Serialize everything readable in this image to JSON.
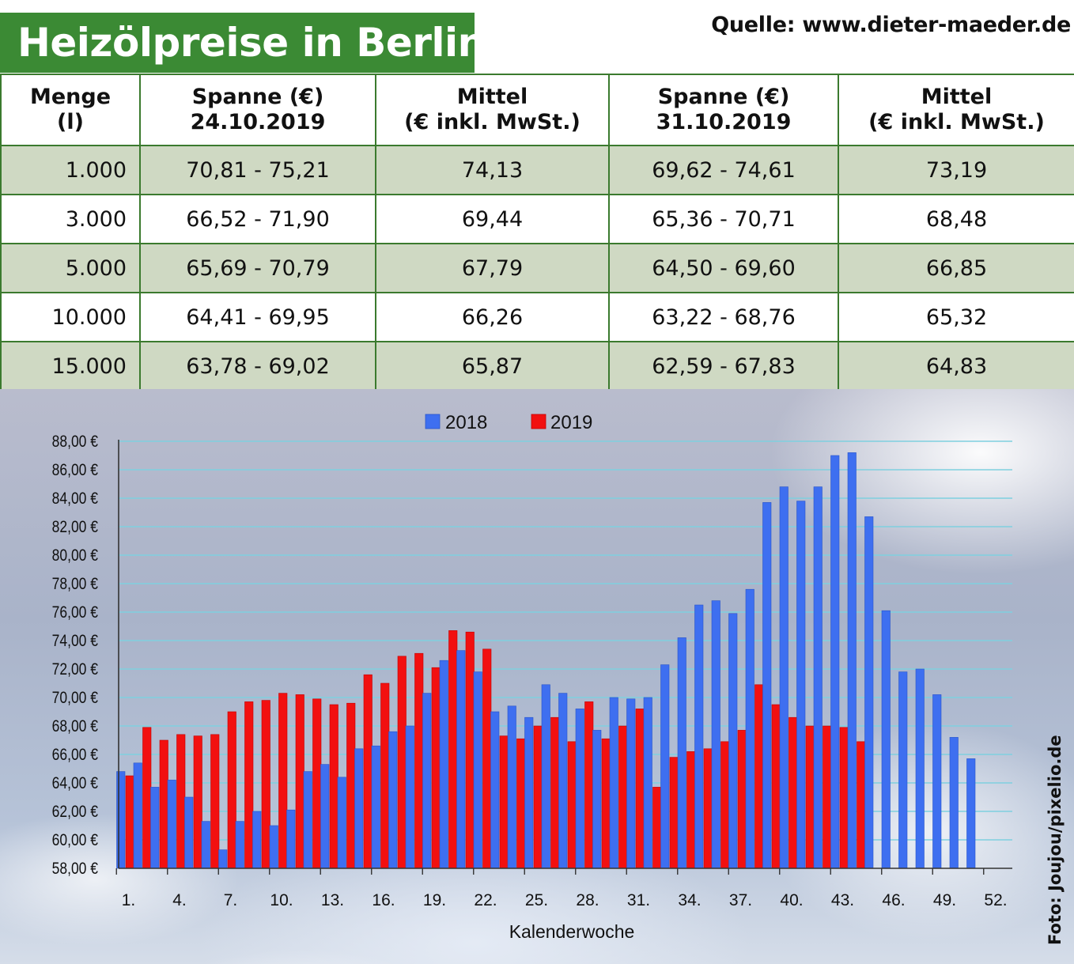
{
  "header": {
    "title": "Heizölpreise in Berlin",
    "source": "Quelle: www.dieter-maeder.de"
  },
  "table": {
    "headers": [
      {
        "line1": "Menge",
        "line2": "(l)"
      },
      {
        "line1": "Spanne (€)",
        "line2": "24.10.2019"
      },
      {
        "line1": "Mittel",
        "line2": "(€ inkl. MwSt.)"
      },
      {
        "line1": "Spanne (€)",
        "line2": "31.10.2019"
      },
      {
        "line1": "Mittel",
        "line2": "(€ inkl. MwSt.)"
      }
    ],
    "rows": [
      [
        "1.000",
        "70,81 - 75,21",
        "74,13",
        "69,62 - 74,61",
        "73,19"
      ],
      [
        "3.000",
        "66,52 - 71,90",
        "69,44",
        "65,36 - 70,71",
        "68,48"
      ],
      [
        "5.000",
        "65,69 - 70,79",
        "67,79",
        "64,50 - 69,60",
        "66,85"
      ],
      [
        "10.000",
        "64,41 - 69,95",
        "66,26",
        "63,22 - 68,76",
        "65,32"
      ],
      [
        "15.000",
        "63,78 - 69,02",
        "65,87",
        "62,59 - 67,83",
        "64,83"
      ]
    ]
  },
  "credit": "Foto: Joujou/pixelio.de",
  "chart_data": {
    "type": "bar",
    "title": "",
    "xlabel": "Kalenderwoche",
    "ylabel": "",
    "ylim": [
      58,
      88
    ],
    "yticks": [
      58,
      60,
      62,
      64,
      66,
      68,
      70,
      72,
      74,
      76,
      78,
      80,
      82,
      84,
      86,
      88
    ],
    "ytick_labels": [
      "58,00 €",
      "60,00 €",
      "62,00 €",
      "64,00 €",
      "66,00 €",
      "68,00 €",
      "70,00 €",
      "72,00 €",
      "74,00 €",
      "76,00 €",
      "78,00 €",
      "80,00 €",
      "82,00 €",
      "84,00 €",
      "86,00 €",
      "88,00 €"
    ],
    "x": [
      1,
      2,
      3,
      4,
      5,
      6,
      7,
      8,
      9,
      10,
      11,
      12,
      13,
      14,
      15,
      16,
      17,
      18,
      19,
      20,
      21,
      22,
      23,
      24,
      25,
      26,
      27,
      28,
      29,
      30,
      31,
      32,
      33,
      34,
      35,
      36,
      37,
      38,
      39,
      40,
      41,
      42,
      43,
      44,
      45,
      46,
      47,
      48,
      49,
      50,
      51,
      52
    ],
    "xtick_labels": [
      {
        "week": 1,
        "label": "1."
      },
      {
        "week": 4,
        "label": "4."
      },
      {
        "week": 7,
        "label": "7."
      },
      {
        "week": 10,
        "label": "10."
      },
      {
        "week": 13,
        "label": "13."
      },
      {
        "week": 16,
        "label": "16."
      },
      {
        "week": 19,
        "label": "19."
      },
      {
        "week": 22,
        "label": "22."
      },
      {
        "week": 25,
        "label": "25."
      },
      {
        "week": 28,
        "label": "28."
      },
      {
        "week": 31,
        "label": "31."
      },
      {
        "week": 34,
        "label": "34."
      },
      {
        "week": 37,
        "label": "37."
      },
      {
        "week": 40,
        "label": "40."
      },
      {
        "week": 43,
        "label": "43."
      },
      {
        "week": 46,
        "label": "46."
      },
      {
        "week": 49,
        "label": "49."
      },
      {
        "week": 52,
        "label": "52."
      }
    ],
    "legend_position": "top-center",
    "grid": true,
    "series": [
      {
        "name": "2018",
        "color": "#3e6ff0",
        "values": [
          64.8,
          65.4,
          63.7,
          64.2,
          63.0,
          61.3,
          59.3,
          61.3,
          62.0,
          61.0,
          62.1,
          64.8,
          65.3,
          64.4,
          66.4,
          66.6,
          67.6,
          68.0,
          70.3,
          72.6,
          73.3,
          71.8,
          69.0,
          69.4,
          68.6,
          70.9,
          70.3,
          69.2,
          67.7,
          70.0,
          69.9,
          70.0,
          72.3,
          74.2,
          76.5,
          76.8,
          75.9,
          77.6,
          83.7,
          84.8,
          83.8,
          84.8,
          87.0,
          87.2,
          82.7,
          76.1,
          71.8,
          72.0,
          70.2,
          67.2,
          65.7,
          null
        ]
      },
      {
        "name": "2019",
        "color": "#f21010",
        "values": [
          64.5,
          67.9,
          67.0,
          67.4,
          67.3,
          67.4,
          69.0,
          69.7,
          69.8,
          70.3,
          70.2,
          69.9,
          69.5,
          69.6,
          71.6,
          71.0,
          72.9,
          73.1,
          72.1,
          74.7,
          74.6,
          73.4,
          67.3,
          67.1,
          68.0,
          68.6,
          66.9,
          69.7,
          67.1,
          68.0,
          69.2,
          63.7,
          65.8,
          66.2,
          66.4,
          66.9,
          67.7,
          70.9,
          69.5,
          68.6,
          68.0,
          68.0,
          67.9,
          66.9,
          null,
          null,
          null,
          null,
          null,
          null,
          null,
          null
        ]
      }
    ]
  }
}
